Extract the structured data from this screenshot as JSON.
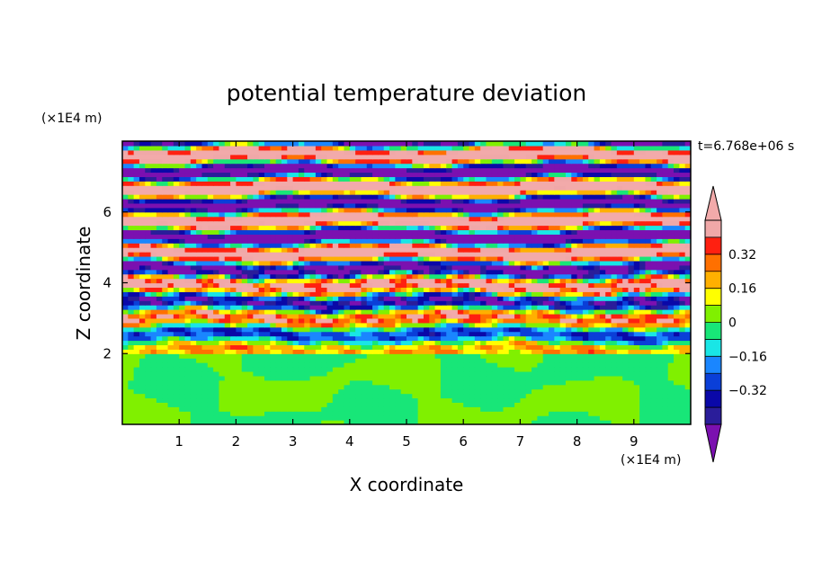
{
  "chart_data": {
    "type": "heatmap",
    "title": "potential temperature deviation",
    "xlabel": "X coordinate",
    "ylabel": "Z coordinate",
    "x_unit": "(×1E4 m)",
    "y_unit": "(×1E4 m)",
    "time_label": "t=6.768e+06 s",
    "xlim": [
      0,
      10
    ],
    "ylim": [
      0,
      8
    ],
    "x_ticks": [
      1,
      2,
      3,
      4,
      5,
      6,
      7,
      8,
      9
    ],
    "y_ticks": [
      2,
      4,
      6
    ],
    "colorbar": {
      "levels": [
        -0.48,
        -0.4,
        -0.32,
        -0.24,
        -0.16,
        -0.08,
        0,
        0.08,
        0.16,
        0.24,
        0.32,
        0.4,
        0.48
      ],
      "colors": [
        "#7b10b0",
        "#2a1d9a",
        "#0a08a8",
        "#0a3fd8",
        "#1a86ff",
        "#19e6e6",
        "#18e678",
        "#80f000",
        "#ffff00",
        "#ffb000",
        "#ff7000",
        "#ff2010",
        "#f0a8a8",
        "#f2aaaa"
      ],
      "tick_labels": [
        {
          "value": 0.32,
          "label": "0.32"
        },
        {
          "value": 0.16,
          "label": "0.16"
        },
        {
          "value": 0,
          "label": "0"
        },
        {
          "value": -0.16,
          "label": "−0.16"
        },
        {
          "value": -0.32,
          "label": "−0.32"
        }
      ],
      "extend": "both"
    },
    "regions": [
      {
        "z_range": [
          0,
          1.95
        ],
        "description": "lower layer, mostly values between -0.08 and 0.08",
        "dominant_values": [
          -0.04,
          0.04
        ]
      },
      {
        "z_range": [
          1.95,
          4.5
        ],
        "description": "turbulent layered band, values spanning full range",
        "dominant_values": [
          -0.48,
          0.48
        ]
      },
      {
        "z_range": [
          4.5,
          8
        ],
        "description": "upper band of alternating strong positive and negative layers",
        "dominant_values": [
          -0.48,
          0.48
        ]
      }
    ]
  }
}
